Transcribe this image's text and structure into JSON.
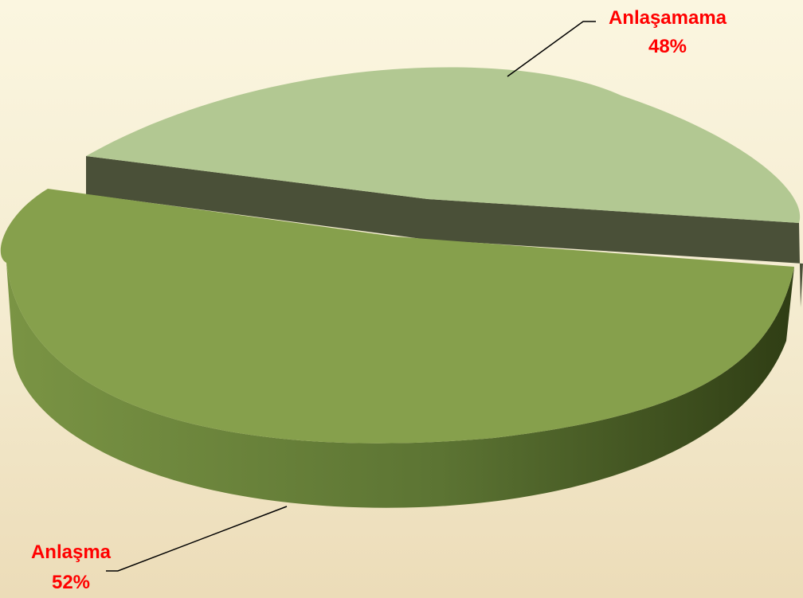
{
  "colors": {
    "label_text": "#ff0000",
    "anlasma_top": "#86a04c",
    "anlasma_side_light": "#7a9444",
    "anlasma_side_dark": "#2f3d14",
    "anlasamama_top": "#b2c892",
    "anlasamama_wall": "#4a5038",
    "leader_line": "#000000"
  },
  "chart_data": {
    "type": "pie",
    "style": "3d-exploded",
    "slices": [
      {
        "label": "Anlaşma",
        "value": 52,
        "value_label": "52%"
      },
      {
        "label": "Anlaşamama",
        "value": 48,
        "value_label": "48%"
      }
    ]
  }
}
